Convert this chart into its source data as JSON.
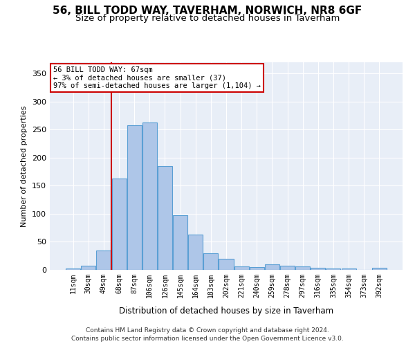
{
  "title": "56, BILL TODD WAY, TAVERHAM, NORWICH, NR8 6GF",
  "subtitle": "Size of property relative to detached houses in Taverham",
  "xlabel": "Distribution of detached houses by size in Taverham",
  "ylabel": "Number of detached properties",
  "bin_labels": [
    "11sqm",
    "30sqm",
    "49sqm",
    "68sqm",
    "87sqm",
    "106sqm",
    "126sqm",
    "145sqm",
    "164sqm",
    "183sqm",
    "202sqm",
    "221sqm",
    "240sqm",
    "259sqm",
    "278sqm",
    "297sqm",
    "316sqm",
    "335sqm",
    "354sqm",
    "373sqm",
    "392sqm"
  ],
  "bar_values": [
    3,
    8,
    35,
    163,
    258,
    263,
    185,
    97,
    63,
    29,
    20,
    6,
    5,
    10,
    8,
    6,
    4,
    3,
    3,
    0,
    4
  ],
  "bar_color": "#aec6e8",
  "bar_edge_color": "#5a9fd4",
  "property_sqm": 67,
  "property_label": "56 BILL TODD WAY: 67sqm",
  "annotation_line1": "← 3% of detached houses are smaller (37)",
  "annotation_line2": "97% of semi-detached houses are larger (1,104) →",
  "annotation_box_color": "#ffffff",
  "annotation_box_edge_color": "#cc0000",
  "vline_color": "#cc0000",
  "ylim": [
    0,
    370
  ],
  "yticks": [
    0,
    50,
    100,
    150,
    200,
    250,
    300,
    350
  ],
  "footer_line1": "Contains HM Land Registry data © Crown copyright and database right 2024.",
  "footer_line2": "Contains public sector information licensed under the Open Government Licence v3.0.",
  "bg_color": "#e8eef7",
  "title_fontsize": 11,
  "subtitle_fontsize": 9.5
}
